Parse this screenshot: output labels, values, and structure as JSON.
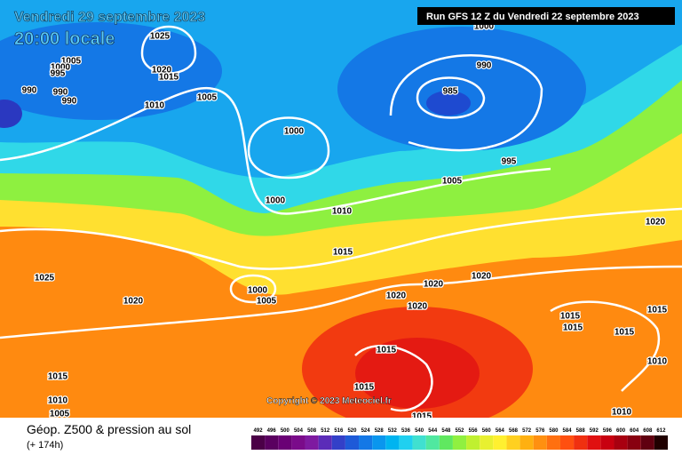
{
  "header": {
    "date": "Vendredi 29 septembre 2023",
    "time": "20:00 locale",
    "run": "Run GFS 12 Z du Vendredi 22 septembre 2023"
  },
  "map": {
    "isobar_labels": [
      1025,
      1005,
      1000,
      995,
      1020,
      1015,
      990,
      990,
      990,
      1010,
      1005,
      1000,
      990,
      985,
      1000,
      995,
      1005,
      1000,
      1010,
      1020,
      1015,
      1025,
      1020,
      1020,
      1000,
      1005,
      1020,
      1020,
      1020,
      1015,
      1015,
      1015,
      1015,
      1015,
      1010,
      1015,
      1015,
      1010,
      1005,
      1010,
      1015
    ],
    "copyright": "Copyright © 2023 Meteociel.fr"
  },
  "footer": {
    "title": "Géop. Z500 & pression au sol",
    "lead": "(+ 174h)"
  },
  "legend": {
    "levels": [
      492,
      496,
      500,
      504,
      508,
      512,
      516,
      520,
      524,
      528,
      532,
      536,
      540,
      544,
      548,
      552,
      556,
      560,
      564,
      568,
      572,
      576,
      580,
      584,
      588,
      592,
      596,
      600,
      604,
      608,
      612
    ],
    "colors": [
      "#4b0047",
      "#5a0060",
      "#6a0075",
      "#7a0b8a",
      "#7e1aa0",
      "#5b2cb8",
      "#3340c8",
      "#1e5ad8",
      "#1478e6",
      "#0a96ee",
      "#00b4f0",
      "#20d0f0",
      "#40e0d0",
      "#50e8a0",
      "#60e860",
      "#90f040",
      "#c0f030",
      "#e8f030",
      "#fff030",
      "#ffd020",
      "#ffb010",
      "#ff9010",
      "#ff7010",
      "#ff5010",
      "#f03010",
      "#e01010",
      "#c80010",
      "#a80010",
      "#880010",
      "#600010",
      "#200000"
    ]
  }
}
